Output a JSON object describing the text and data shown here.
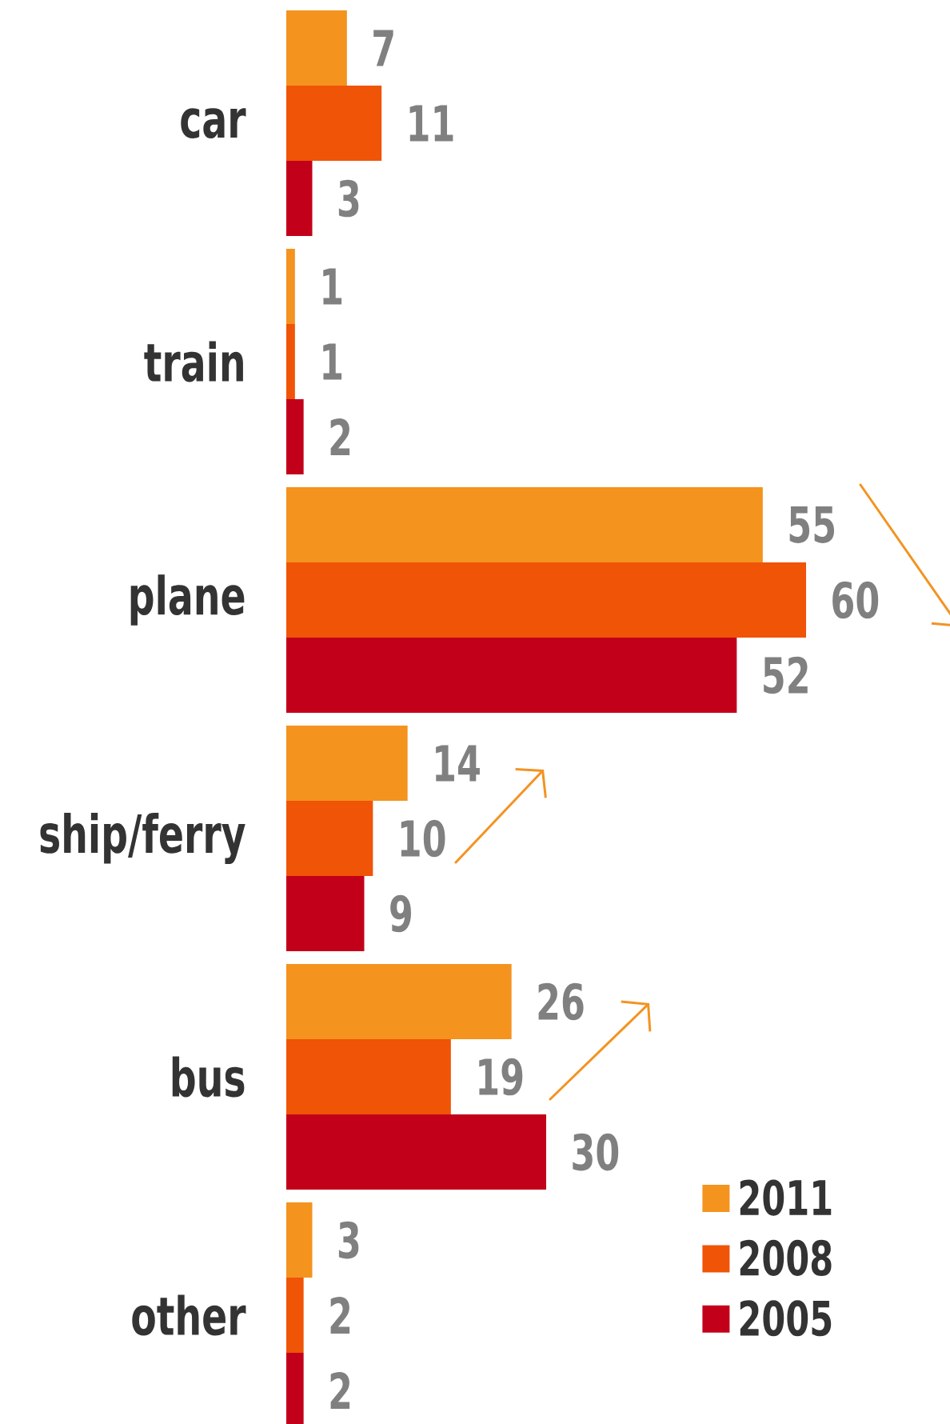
{
  "chart_data": {
    "type": "bar",
    "orientation": "horizontal",
    "categories": [
      "car",
      "train",
      "plane",
      "ship/ferry",
      "bus",
      "other"
    ],
    "series": [
      {
        "name": "2011",
        "color": "#f4931e",
        "values": [
          7,
          1,
          55,
          14,
          26,
          3
        ]
      },
      {
        "name": "2008",
        "color": "#ef5407",
        "values": [
          11,
          1,
          60,
          10,
          19,
          2
        ]
      },
      {
        "name": "2005",
        "color": "#c3001a",
        "values": [
          3,
          2,
          52,
          9,
          30,
          2
        ]
      }
    ],
    "data_labels": true,
    "legend": "bottom right"
  }
}
